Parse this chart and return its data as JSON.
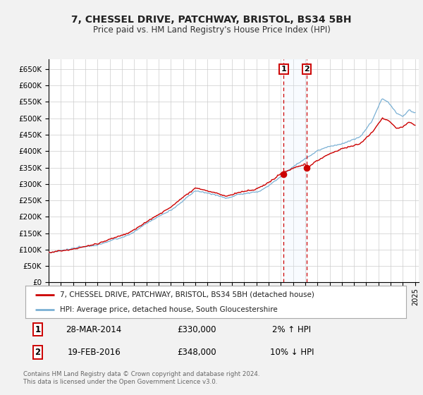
{
  "title": "7, CHESSEL DRIVE, PATCHWAY, BRISTOL, BS34 5BH",
  "subtitle": "Price paid vs. HM Land Registry's House Price Index (HPI)",
  "legend_line1": "7, CHESSEL DRIVE, PATCHWAY, BRISTOL, BS34 5BH (detached house)",
  "legend_line2": "HPI: Average price, detached house, South Gloucestershire",
  "transaction1_date": "28-MAR-2014",
  "transaction1_price": "£330,000",
  "transaction1_hpi": "2% ↑ HPI",
  "transaction1_year": 2014.23,
  "transaction1_value": 330000,
  "transaction2_date": "19-FEB-2016",
  "transaction2_price": "£348,000",
  "transaction2_hpi": "10% ↓ HPI",
  "transaction2_year": 2016.12,
  "transaction2_value": 348000,
  "house_color": "#cc0000",
  "hpi_color": "#7ab0d4",
  "marker_color": "#cc0000",
  "vline_color": "#cc0000",
  "shade_color": "#ddeeff",
  "grid_color": "#cccccc",
  "background_color": "#f2f2f2",
  "plot_bg_color": "#ffffff",
  "ylim_min": 0,
  "ylim_max": 680000,
  "footnote": "Contains HM Land Registry data © Crown copyright and database right 2024.\nThis data is licensed under the Open Government Licence v3.0."
}
